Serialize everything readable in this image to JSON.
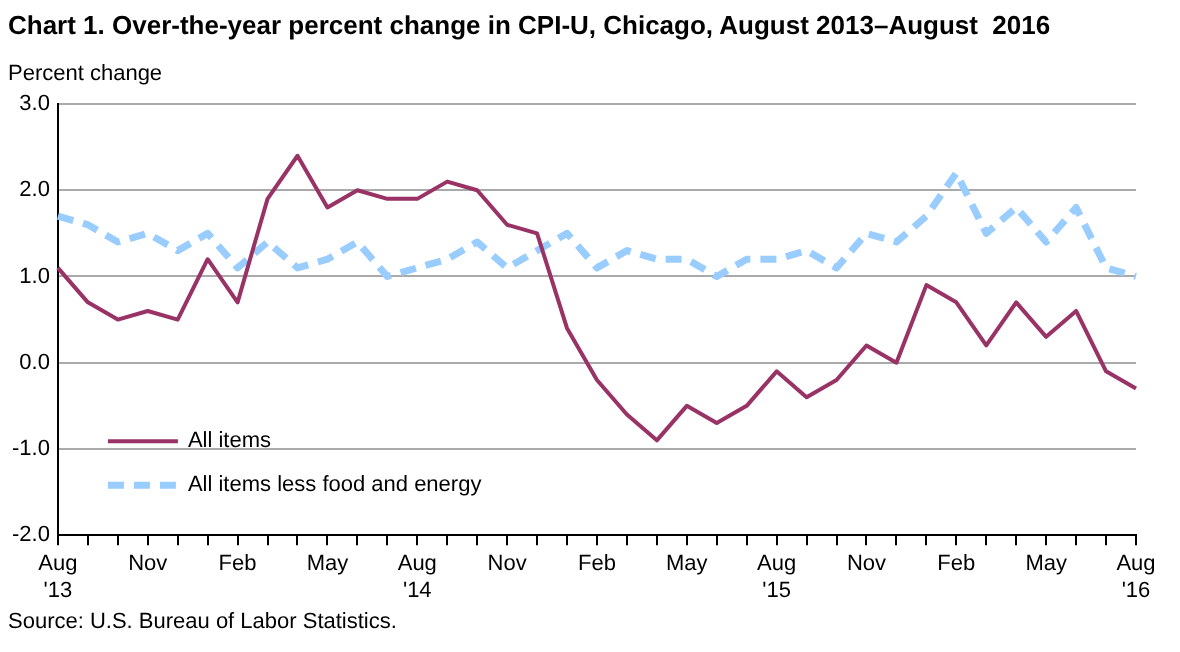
{
  "chart_data": {
    "type": "line",
    "title": "Chart 1. Over-the-year percent change in CPI-U, Chicago, August 2013–August  2016",
    "ylabel": "Percent change",
    "categories": [
      "Aug\n'13",
      null,
      null,
      "Nov",
      null,
      null,
      "Feb",
      null,
      null,
      "May",
      null,
      null,
      "Aug\n'14",
      null,
      null,
      "Nov",
      null,
      null,
      "Feb",
      null,
      null,
      "May",
      null,
      null,
      "Aug\n'15",
      null,
      null,
      "Nov",
      null,
      null,
      "Feb",
      null,
      null,
      "May",
      null,
      null,
      "Aug\n'16"
    ],
    "series": [
      {
        "name": "All items",
        "color": "#993366",
        "line_style": "solid",
        "values": [
          1.1,
          0.7,
          0.5,
          0.6,
          0.5,
          1.2,
          0.7,
          1.9,
          2.4,
          1.8,
          2.0,
          1.9,
          1.9,
          2.1,
          2.0,
          1.6,
          1.5,
          0.4,
          -0.2,
          -0.6,
          -0.9,
          -0.5,
          -0.7,
          -0.5,
          -0.1,
          -0.4,
          -0.2,
          0.2,
          0.0,
          0.9,
          0.7,
          0.2,
          0.7,
          0.3,
          0.6,
          -0.1,
          -0.3
        ]
      },
      {
        "name": "All items less food and energy",
        "color": "#99ccff",
        "line_style": "dashed",
        "values": [
          1.7,
          1.6,
          1.4,
          1.5,
          1.3,
          1.5,
          1.1,
          1.4,
          1.1,
          1.2,
          1.4,
          1.0,
          1.1,
          1.2,
          1.4,
          1.1,
          1.3,
          1.5,
          1.1,
          1.3,
          1.2,
          1.2,
          1.0,
          1.2,
          1.2,
          1.3,
          1.1,
          1.5,
          1.4,
          1.7,
          2.2,
          1.5,
          1.8,
          1.4,
          1.8,
          1.1,
          1.0
        ]
      }
    ],
    "ylim": [
      -2,
      3
    ],
    "yticks": [
      {
        "value": -2,
        "label": "-2.0"
      },
      {
        "value": -1,
        "label": "-1.0"
      },
      {
        "value": 0,
        "label": "0.0"
      },
      {
        "value": 1,
        "label": "1.0"
      },
      {
        "value": 2,
        "label": "2.0"
      },
      {
        "value": 3,
        "label": "3.0"
      }
    ],
    "grid": "y",
    "legend": "bottom left",
    "marker": "none",
    "annotations": [
      "Source: U.S. Bureau of Labor Statistics."
    ]
  }
}
